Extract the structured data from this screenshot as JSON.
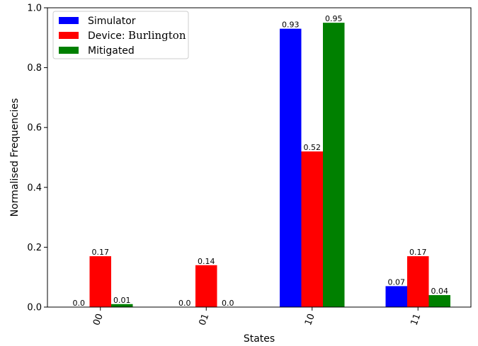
{
  "chart_data": {
    "type": "bar",
    "categories": [
      "00",
      "01",
      "10",
      "11"
    ],
    "series": [
      {
        "name": "Simulator",
        "values": [
          0.0,
          0.0,
          0.93,
          0.07
        ],
        "labels": [
          "0.0",
          "0.0",
          "0.93",
          "0.07"
        ],
        "color": "#0000ff"
      },
      {
        "name": "Device: Burlington",
        "values": [
          0.17,
          0.14,
          0.52,
          0.17
        ],
        "labels": [
          "0.17",
          "0.14",
          "0.52",
          "0.17"
        ],
        "color": "#ff0000"
      },
      {
        "name": "Mitigated",
        "values": [
          0.01,
          0.0,
          0.95,
          0.04
        ],
        "labels": [
          "0.01",
          "0.0",
          "0.95",
          "0.04"
        ],
        "color": "#008000"
      }
    ],
    "legend_parts": {
      "simulator": "Simulator",
      "device_prefix": "Device: ",
      "device_name": "Burlington",
      "mitigated": "Mitigated"
    },
    "xlabel": "States",
    "ylabel": "Normalised Frequencies",
    "ylim": [
      0,
      1.0
    ],
    "yticks": [
      "0.0",
      "0.2",
      "0.4",
      "0.6",
      "0.8",
      "1.0"
    ],
    "legend_position": "top-left",
    "grid": false
  }
}
